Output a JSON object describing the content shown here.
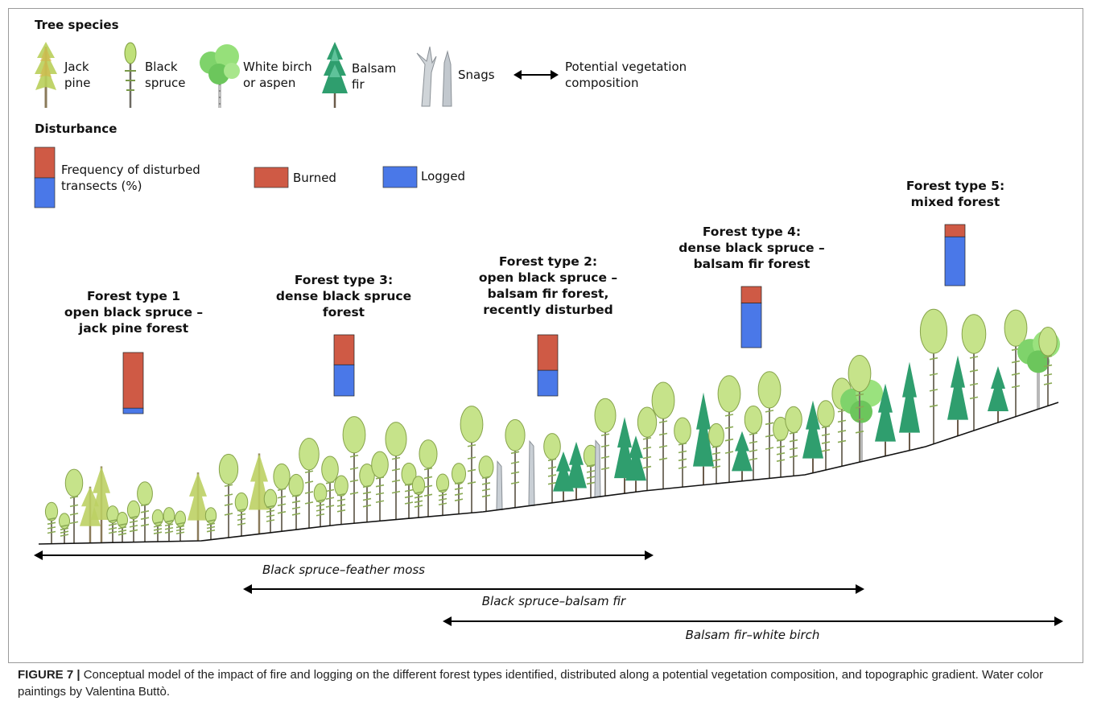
{
  "legend": {
    "tree_species_title": "Tree species",
    "species": [
      {
        "id": "jack-pine",
        "line1": "Jack",
        "line2": "pine"
      },
      {
        "id": "black-spruce",
        "line1": "Black",
        "line2": "spruce"
      },
      {
        "id": "white-birch",
        "line1": "White birch",
        "line2": "or aspen"
      },
      {
        "id": "balsam-fir",
        "line1": "Balsam",
        "line2": "fir"
      },
      {
        "id": "snags",
        "line1": "Snags",
        "line2": ""
      }
    ],
    "arrow_line1": "Potential vegetation",
    "arrow_line2": "composition",
    "disturbance_title": "Disturbance",
    "freq_line1": "Frequency of disturbed",
    "freq_line2": "transects (%)",
    "burned_label": "Burned",
    "logged_label": "Logged",
    "colors": {
      "burned": "#cf5a45",
      "logged": "#4a78e8"
    }
  },
  "forest_types": [
    {
      "id": "ft1",
      "line1": "Forest type 1",
      "line2": "open black spruce –",
      "line3": "jack pine forest",
      "burned_pct": 91,
      "logged_pct": 9
    },
    {
      "id": "ft3",
      "line1": "Forest type 3:",
      "line2": "dense black spruce",
      "line3": "forest",
      "burned_pct": 49,
      "logged_pct": 51
    },
    {
      "id": "ft2",
      "line1": "Forest type 2:",
      "line2": "open black spruce –",
      "line3": "balsam fir forest,",
      "line4": "recently disturbed",
      "burned_pct": 58,
      "logged_pct": 42
    },
    {
      "id": "ft4",
      "line1": "Forest type 4:",
      "line2": "dense black spruce –",
      "line3": "balsam fir forest",
      "burned_pct": 27,
      "logged_pct": 73
    },
    {
      "id": "ft5",
      "line1": "Forest type 5:",
      "line2": "mixed forest",
      "burned_pct": 20,
      "logged_pct": 80
    }
  ],
  "ranges": [
    {
      "id": "bsfm",
      "label": "Black spruce–feather moss"
    },
    {
      "id": "bsbf",
      "label": "Black spruce–balsam fir"
    },
    {
      "id": "bfwb",
      "label": "Balsam fir–white birch"
    }
  ],
  "caption": {
    "label": "FIGURE 7 |",
    "text": " Conceptual model of the impact of fire and logging on the different forest types identified, distributed along a potential vegetation composition, and topographic gradient. Water color paintings by Valentina Buttò."
  }
}
